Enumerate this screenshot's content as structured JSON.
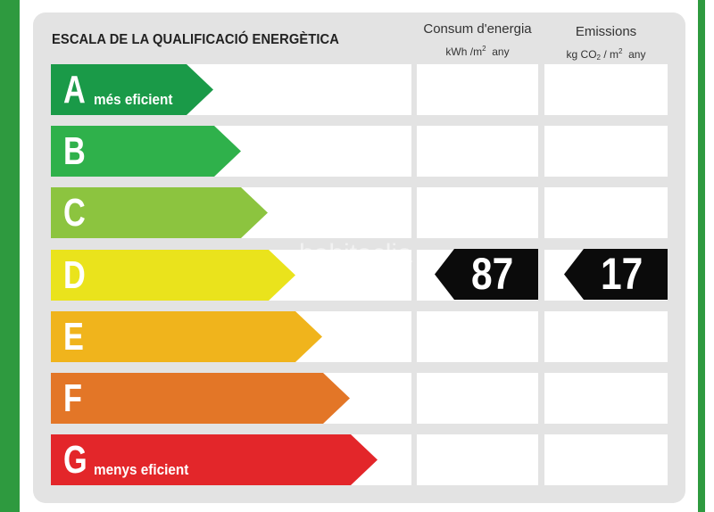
{
  "header": {
    "title": "ESCALA DE LA QUALIFICACIÓ ENERGÈTICA",
    "col1_title": "Consum d'energia",
    "col1_unit_pre": "kWh /m",
    "col1_unit_sup": "2",
    "col1_unit_post": "any",
    "col2_title": "Emissions",
    "col2_unit_pre": "kg CO",
    "col2_unit_sub": "2",
    "col2_unit_mid": "/ m",
    "col2_unit_sup": "2",
    "col2_unit_post": "any"
  },
  "ratings": [
    {
      "letter": "A",
      "label": "més eficient",
      "color": "#1a9a48"
    },
    {
      "letter": "B",
      "label": "",
      "color": "#2fb14b"
    },
    {
      "letter": "C",
      "label": "",
      "color": "#8cc43f"
    },
    {
      "letter": "D",
      "label": "",
      "color": "#eae31c"
    },
    {
      "letter": "E",
      "label": "",
      "color": "#f0b41c"
    },
    {
      "letter": "F",
      "label": "",
      "color": "#e37627"
    },
    {
      "letter": "G",
      "label": "menys eficient",
      "color": "#e3262a"
    }
  ],
  "result": {
    "rating": "D",
    "energy_consumption": "87",
    "emissions": "17"
  },
  "watermark": "habitaclia"
}
